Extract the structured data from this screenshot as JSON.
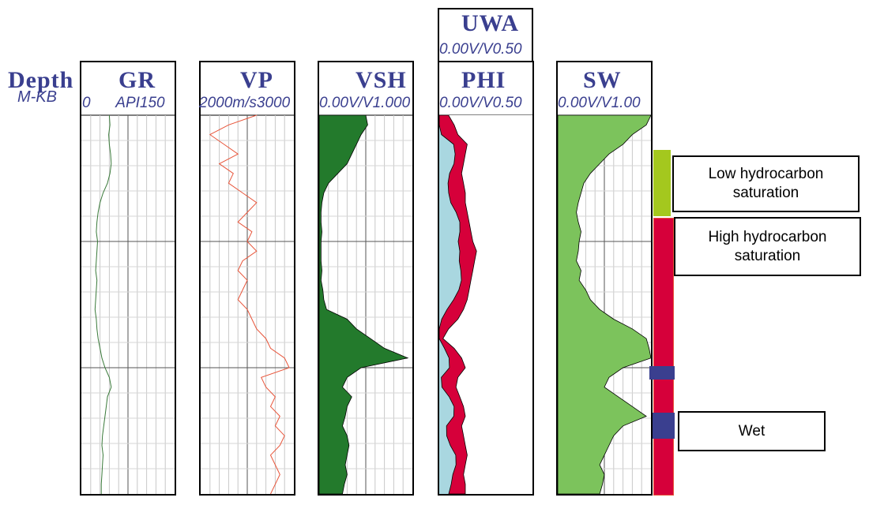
{
  "depth_header": {
    "name": "Depth",
    "unit": "M-KB"
  },
  "tracks": [
    {
      "name": "GR",
      "scale_left": "0",
      "scale_unit": "API",
      "scale_right": "150",
      "curve_color": "#3a7a3a"
    },
    {
      "name": "VP",
      "scale_left": "2000",
      "scale_unit": "m/s",
      "scale_right": "3000",
      "curve_color": "#e8553a"
    },
    {
      "name": "VSH",
      "scale_left": "0.00",
      "scale_unit": "V/V",
      "scale_right": "1.000",
      "fill_color": "#237a2c"
    },
    {
      "name": "PHI",
      "scale_left": "0.00",
      "scale_unit": "V/V",
      "scale_right": "0.50",
      "top_name": "UWA",
      "top_scale_left": "0.00",
      "top_scale_unit": "V/V",
      "top_scale_right": "0.50",
      "fill_colors": [
        "#a9d7e0",
        "#d6003a"
      ]
    },
    {
      "name": "SW",
      "scale_left": "0.00",
      "scale_unit": "V/V",
      "scale_right": "1.00",
      "fill_color": "#7cc35c"
    }
  ],
  "zones": [
    {
      "label": "Low hydrocarbon saturation",
      "color": "#a4c81e"
    },
    {
      "label": "High hydrocarbon saturation",
      "color": "#d6003a"
    },
    {
      "label": "Wet",
      "color": "#3a3f8f"
    }
  ],
  "chart_data": {
    "type": "line",
    "description_tracks": [
      "GR",
      "VP",
      "VSH",
      "PHI",
      "SW"
    ],
    "depth_samples": 40,
    "GR_API": [
      45,
      46,
      44,
      45,
      47,
      48,
      46,
      42,
      35,
      30,
      27,
      25,
      24,
      26,
      25,
      24,
      23,
      25,
      24,
      23,
      22,
      24,
      25,
      27,
      30,
      33,
      38,
      45,
      48,
      42,
      40,
      38,
      36,
      34,
      33,
      35,
      34,
      33,
      32,
      32
    ],
    "VP_ms": [
      2600,
      2300,
      2100,
      2250,
      2400,
      2200,
      2350,
      2300,
      2450,
      2600,
      2500,
      2400,
      2550,
      2500,
      2600,
      2450,
      2400,
      2500,
      2450,
      2400,
      2500,
      2550,
      2600,
      2700,
      2750,
      2900,
      2950,
      2650,
      2700,
      2800,
      2750,
      2850,
      2800,
      2900,
      2850,
      2750,
      2800,
      2850,
      2800,
      2750
    ],
    "VSH_vv": [
      0.5,
      0.52,
      0.45,
      0.4,
      0.35,
      0.3,
      0.2,
      0.1,
      0.05,
      0.03,
      0.02,
      0.02,
      0.03,
      0.02,
      0.02,
      0.02,
      0.03,
      0.02,
      0.04,
      0.05,
      0.08,
      0.3,
      0.4,
      0.55,
      0.7,
      0.95,
      0.45,
      0.3,
      0.25,
      0.35,
      0.3,
      0.28,
      0.25,
      0.3,
      0.32,
      0.3,
      0.28,
      0.3,
      0.27,
      0.25
    ],
    "PHI_vv": [
      0.05,
      0.08,
      0.1,
      0.15,
      0.14,
      0.13,
      0.12,
      0.13,
      0.14,
      0.14,
      0.15,
      0.16,
      0.17,
      0.18,
      0.2,
      0.19,
      0.18,
      0.17,
      0.16,
      0.15,
      0.13,
      0.1,
      0.05,
      0.02,
      0.08,
      0.12,
      0.14,
      0.1,
      0.09,
      0.11,
      0.13,
      0.14,
      0.12,
      0.13,
      0.14,
      0.15,
      0.14,
      0.13,
      0.14,
      0.14
    ],
    "SW_vv": [
      1.0,
      0.95,
      0.8,
      0.7,
      0.55,
      0.45,
      0.35,
      0.28,
      0.25,
      0.22,
      0.2,
      0.22,
      0.25,
      0.23,
      0.22,
      0.2,
      0.25,
      0.23,
      0.3,
      0.35,
      0.45,
      0.6,
      0.8,
      0.95,
      0.98,
      1.0,
      0.7,
      0.55,
      0.5,
      0.65,
      0.8,
      0.95,
      0.7,
      0.6,
      0.55,
      0.5,
      0.45,
      0.5,
      0.48,
      0.45
    ]
  }
}
